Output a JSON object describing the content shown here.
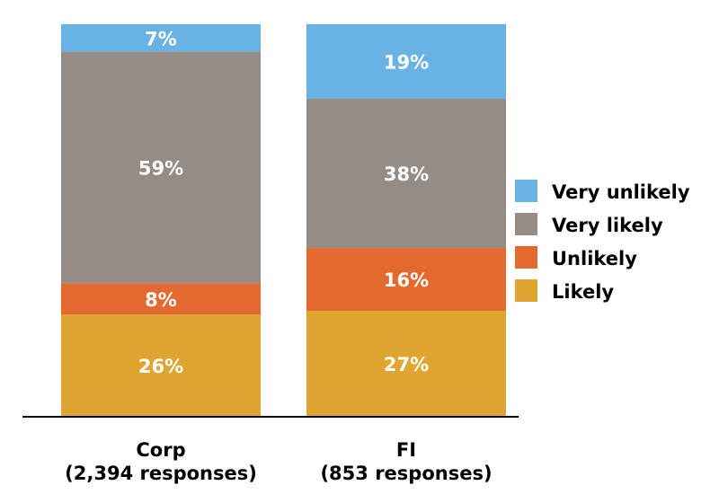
{
  "chart_data": {
    "type": "bar",
    "stacked": true,
    "categories": [
      {
        "name": "Corp",
        "sublabel": "(2,394 responses)"
      },
      {
        "name": "FI",
        "sublabel": "(853 responses)"
      }
    ],
    "series": [
      {
        "name": "Likely",
        "color": "#E0A431",
        "values": [
          26,
          27
        ]
      },
      {
        "name": "Unlikely",
        "color": "#E3692E",
        "values": [
          8,
          16
        ]
      },
      {
        "name": "Very likely",
        "color": "#958C86",
        "values": [
          59,
          38
        ]
      },
      {
        "name": "Very unlikely",
        "color": "#69B3E4",
        "values": [
          7,
          19
        ]
      }
    ],
    "value_labels": [
      [
        "26%",
        "27%"
      ],
      [
        "8%",
        "16%"
      ],
      [
        "59%",
        "38%"
      ],
      [
        "7%",
        "19%"
      ]
    ],
    "legend_order": [
      "Very unlikely",
      "Very likely",
      "Unlikely",
      "Likely"
    ],
    "legend_position": "right",
    "ylim": [
      0,
      100
    ],
    "grid": false,
    "title": "",
    "xlabel": "",
    "ylabel": ""
  }
}
